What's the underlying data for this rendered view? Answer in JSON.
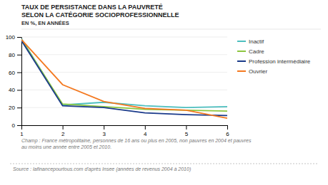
{
  "chart_data": {
    "type": "line",
    "title": [
      "TAUX DE PERSISTANCE DANS LA PAUVRETÉ",
      "SELON LA CATÉGORIE SOCIOPROFESSIONNELLE"
    ],
    "subtitle": "EN %, EN ANNÉES",
    "x": [
      1,
      2,
      3,
      4,
      5,
      6
    ],
    "series": [
      {
        "name": "Inactif",
        "color": "#4dbfbf",
        "values": [
          98,
          23,
          26,
          22,
          20,
          21
        ]
      },
      {
        "name": "Cadre",
        "color": "#8dc63f",
        "values": [
          97,
          24,
          21,
          18,
          17,
          16
        ]
      },
      {
        "name": "Profession intermédiaire",
        "color": "#1a3a8a",
        "values": [
          96,
          22,
          20,
          14,
          12,
          11
        ]
      },
      {
        "name": "Ouvrier",
        "color": "#f47920",
        "values": [
          97,
          46,
          27,
          19,
          17,
          8
        ]
      }
    ],
    "xlim": [
      1,
      6
    ],
    "xticks": [
      1,
      2,
      3,
      4,
      5,
      6
    ],
    "ylim": [
      0,
      100
    ],
    "yticks": [
      0,
      20,
      40,
      60,
      80,
      100
    ],
    "grid": true,
    "legend": "right",
    "annotations": [
      "Champ :  France métropolitaine, personnes de 16 ans ou plus en 2005, non pauvres en 2004 et pauvres",
      "au moins une année entre 2005 et 2010.",
      "Source : lafinancepourtous.com d'après Insee (années de revenus 2004 à 2010)"
    ]
  }
}
